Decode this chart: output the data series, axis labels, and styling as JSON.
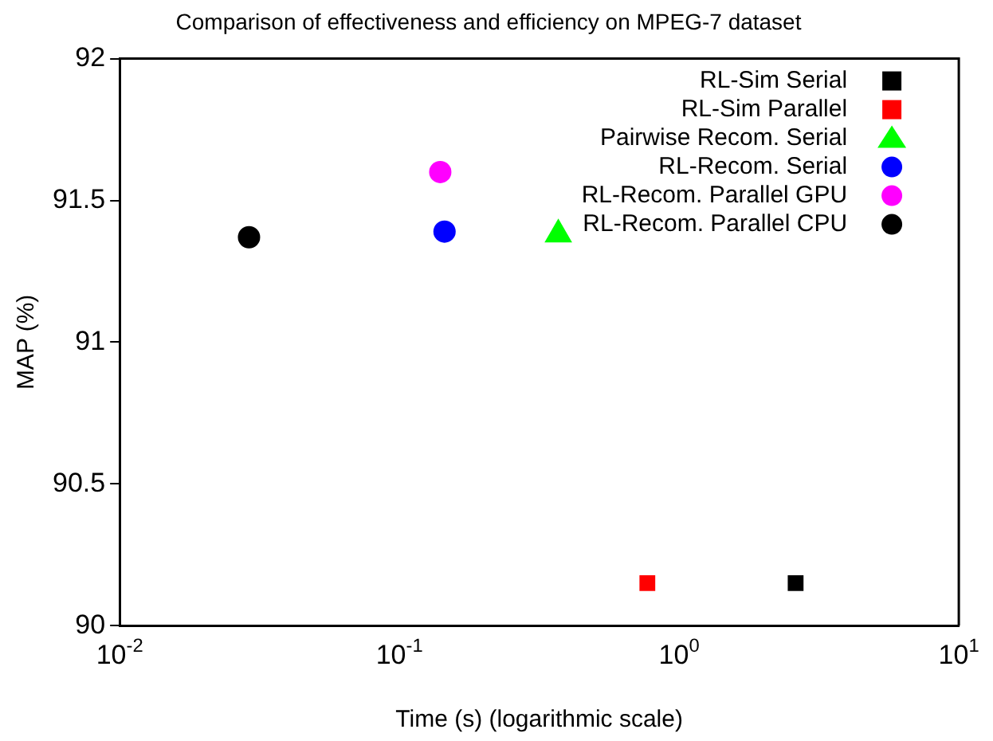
{
  "chart_data": {
    "type": "scatter",
    "title": "Comparison of effectiveness and efficiency on MPEG-7 dataset",
    "xlabel": "Time (s) (logarithmic scale)",
    "ylabel": "MAP (%)",
    "log": "x",
    "xlim": [
      0.01,
      10
    ],
    "xticks": [
      {
        "value": 0.01,
        "label": "10$^{-2}$"
      },
      {
        "value": 0.1,
        "label": "10$^{-1}$"
      },
      {
        "value": 1,
        "label": "10$^{0}$"
      },
      {
        "value": 10,
        "label": "10$^{1}$"
      }
    ],
    "ylim": [
      90,
      92
    ],
    "yticks": [
      90,
      90.5,
      91,
      91.5,
      92
    ],
    "grid": false,
    "legend": "top right",
    "series": [
      {
        "name": "RL-Sim Serial",
        "color": "#000000",
        "marker": "square",
        "x": [
          2.61
        ],
        "values": [
          90.15
        ]
      },
      {
        "name": "RL-Sim Parallel",
        "color": "#ff0000",
        "marker": "square",
        "x": [
          0.77
        ],
        "values": [
          90.15
        ]
      },
      {
        "name": "Pairwise Recom. Serial",
        "color": "#00ff00",
        "marker": "triangle",
        "x": [
          0.37
        ],
        "values": [
          91.38
        ]
      },
      {
        "name": "RL-Recom. Serial",
        "color": "#0000ff",
        "marker": "circle",
        "x": [
          0.145
        ],
        "values": [
          91.39
        ]
      },
      {
        "name": "RL-Recom. Parallel GPU",
        "color": "#ff00ff",
        "marker": "circle",
        "x": [
          0.14
        ],
        "values": [
          91.6
        ]
      },
      {
        "name": "RL-Recom. Parallel CPU",
        "color": "#000000",
        "marker": "circle",
        "x": [
          0.029
        ],
        "values": [
          91.37
        ]
      }
    ]
  }
}
